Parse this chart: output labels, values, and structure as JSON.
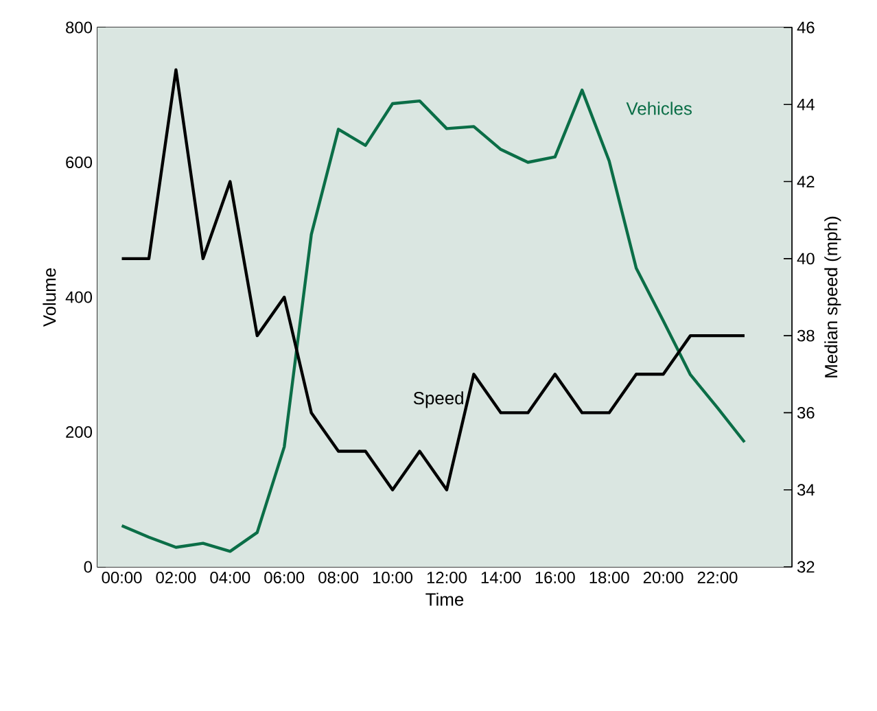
{
  "chart_data": {
    "type": "line",
    "xlabel": "Time",
    "ylabel": "Volume",
    "y2label": "Median speed (mph)",
    "x": [
      0,
      1,
      2,
      3,
      4,
      5,
      6,
      7,
      8,
      9,
      10,
      11,
      12,
      13,
      14,
      15,
      16,
      17,
      18,
      19,
      20,
      21,
      22,
      23
    ],
    "xlim": [
      -0.9,
      24.75
    ],
    "xticks": [
      {
        "value": 0,
        "label": "00:00"
      },
      {
        "value": 1,
        "label": null
      },
      {
        "value": 2,
        "label": "02:00"
      },
      {
        "value": 3,
        "label": null
      },
      {
        "value": 4,
        "label": "04:00"
      },
      {
        "value": 5,
        "label": null
      },
      {
        "value": 6,
        "label": "06:00"
      },
      {
        "value": 7,
        "label": null
      },
      {
        "value": 8,
        "label": "08:00"
      },
      {
        "value": 9,
        "label": null
      },
      {
        "value": 10,
        "label": "10:00"
      },
      {
        "value": 11,
        "label": null
      },
      {
        "value": 12,
        "label": "12:00"
      },
      {
        "value": 13,
        "label": null
      },
      {
        "value": 14,
        "label": "14:00"
      },
      {
        "value": 15,
        "label": null
      },
      {
        "value": 16,
        "label": "16:00"
      },
      {
        "value": 17,
        "label": null
      },
      {
        "value": 18,
        "label": "18:00"
      },
      {
        "value": 19,
        "label": null
      },
      {
        "value": 20,
        "label": "20:00"
      },
      {
        "value": 21,
        "label": null
      },
      {
        "value": 22,
        "label": "22:00"
      },
      {
        "value": 23,
        "label": null
      }
    ],
    "ylim": [
      0,
      800
    ],
    "yticks": [
      0,
      200,
      400,
      600,
      800
    ],
    "y2lim": [
      32,
      46
    ],
    "y2ticks": [
      32,
      34,
      36,
      38,
      40,
      42,
      44,
      46
    ],
    "series": [
      {
        "name": "Vehicles",
        "color": "#0b6e47",
        "values": [
          61,
          44,
          29,
          35,
          23,
          51,
          178,
          493,
          649,
          625,
          687,
          691,
          650,
          653,
          619,
          600,
          608,
          707,
          602,
          443,
          365,
          285,
          236,
          185
        ]
      },
      {
        "name": "Speed",
        "color": "#000000",
        "axis": "y2",
        "values": [
          40,
          40,
          44.9,
          40,
          42,
          38,
          39,
          36,
          35,
          35,
          34,
          35,
          34,
          37,
          36,
          36,
          37,
          36,
          36,
          37,
          37,
          38,
          38,
          38
        ]
      }
    ]
  }
}
